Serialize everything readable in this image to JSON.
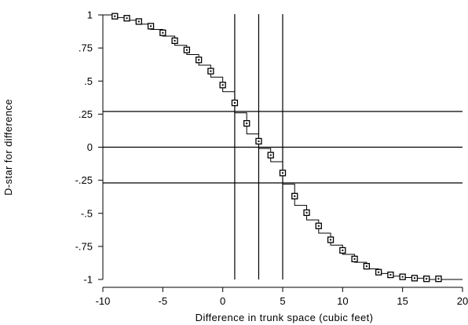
{
  "chart_data": {
    "type": "scatter",
    "title": "",
    "xlabel": "Difference in trunk space (cubic feet)",
    "ylabel": "D-star for difference",
    "xlim": [
      -10,
      20
    ],
    "ylim": [
      -1,
      1
    ],
    "x_ticks": [
      {
        "value": -10,
        "label": "-10"
      },
      {
        "value": -5,
        "label": "-5"
      },
      {
        "value": 0,
        "label": "0"
      },
      {
        "value": 5,
        "label": "5"
      },
      {
        "value": 10,
        "label": "10"
      },
      {
        "value": 15,
        "label": "15"
      },
      {
        "value": 20,
        "label": "20"
      }
    ],
    "y_ticks": [
      {
        "value": 1,
        "label": "1"
      },
      {
        "value": 0.75,
        "label": ".75"
      },
      {
        "value": 0.5,
        "label": ".5"
      },
      {
        "value": 0.25,
        "label": ".25"
      },
      {
        "value": 0,
        "label": "0"
      },
      {
        "value": -0.25,
        "label": "-.25"
      },
      {
        "value": -0.5,
        "label": "-.5"
      },
      {
        "value": -0.75,
        "label": "-.75"
      },
      {
        "value": -1,
        "label": "-1"
      }
    ],
    "grid": false,
    "legend": "none",
    "reference_lines": {
      "vertical": [
        1,
        3,
        5
      ],
      "horizontal": [
        0.27,
        0,
        -0.27
      ]
    },
    "series": [
      {
        "marker": "hollow-square",
        "x": [
          -9,
          -8,
          -7,
          -6,
          -5,
          -4,
          -3,
          -2,
          -1,
          0,
          1,
          2,
          3,
          4,
          5,
          6,
          7,
          8,
          9,
          10,
          11,
          12,
          13,
          14,
          15,
          16,
          17,
          18
        ],
        "y": [
          0.99,
          0.975,
          0.95,
          0.915,
          0.865,
          0.805,
          0.735,
          0.66,
          0.575,
          0.47,
          0.335,
          0.18,
          0.045,
          -0.06,
          -0.195,
          -0.37,
          -0.495,
          -0.595,
          -0.7,
          -0.78,
          -0.845,
          -0.9,
          -0.945,
          -0.965,
          -0.98,
          -0.99,
          -0.995,
          -0.995
        ]
      }
    ],
    "step_line": {
      "x": [
        -10,
        -9,
        -8,
        -7,
        -6,
        -5,
        -4,
        -3,
        -2,
        -1,
        0,
        1,
        2,
        3,
        4,
        5,
        6,
        7,
        8,
        9,
        10,
        11,
        12,
        13,
        14,
        15,
        16,
        17,
        18,
        20
      ],
      "y": [
        1,
        0.98,
        0.96,
        0.93,
        0.89,
        0.84,
        0.77,
        0.7,
        0.62,
        0.53,
        0.42,
        0.26,
        0.1,
        -0.01,
        -0.11,
        -0.28,
        -0.44,
        -0.55,
        -0.65,
        -0.74,
        -0.81,
        -0.87,
        -0.92,
        -0.955,
        -0.975,
        -0.985,
        -0.99,
        -1,
        -1,
        -1
      ]
    },
    "colors": {
      "axis": "#000000",
      "marker_stroke": "#000000",
      "marker_fill": "#ffffff",
      "lines": "#000000"
    }
  }
}
